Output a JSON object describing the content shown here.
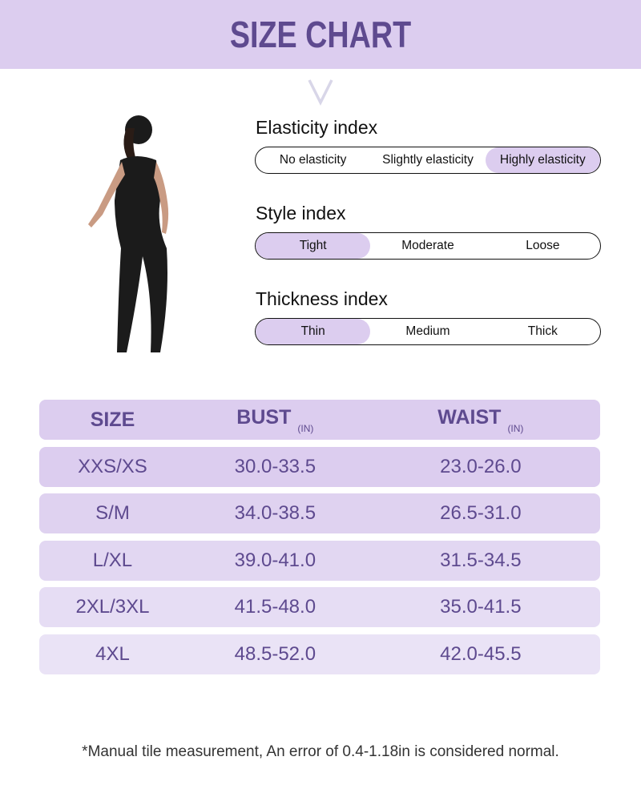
{
  "title": "SIZE CHART",
  "indices": [
    {
      "label": "Elasticity index",
      "options": [
        "No elasticity",
        "Slightly elasticity",
        "Highly elasticity"
      ],
      "selected": 2
    },
    {
      "label": "Style index",
      "options": [
        "Tight",
        "Moderate",
        "Loose"
      ],
      "selected": 0
    },
    {
      "label": "Thickness index",
      "options": [
        "Thin",
        "Medium",
        "Thick"
      ],
      "selected": 0
    }
  ],
  "table": {
    "headers": [
      {
        "label": "SIZE",
        "unit": ""
      },
      {
        "label": "BUST",
        "unit": "(IN)"
      },
      {
        "label": "WAIST",
        "unit": "(IN)"
      }
    ],
    "rows": [
      [
        "XXS/XS",
        "30.0-33.5",
        "23.0-26.0"
      ],
      [
        "S/M",
        "34.0-38.5",
        "26.5-31.0"
      ],
      [
        "L/XL",
        "39.0-41.0",
        "31.5-34.5"
      ],
      [
        "2XL/3XL",
        "41.5-48.0",
        "35.0-41.5"
      ],
      [
        "4XL",
        "48.5-52.0",
        "42.0-45.5"
      ]
    ]
  },
  "note": "*Manual tile measurement, An error of 0.4-1.18in is considered normal.",
  "colors": {
    "accent": "#dccdef",
    "text": "#5e4a8f"
  }
}
